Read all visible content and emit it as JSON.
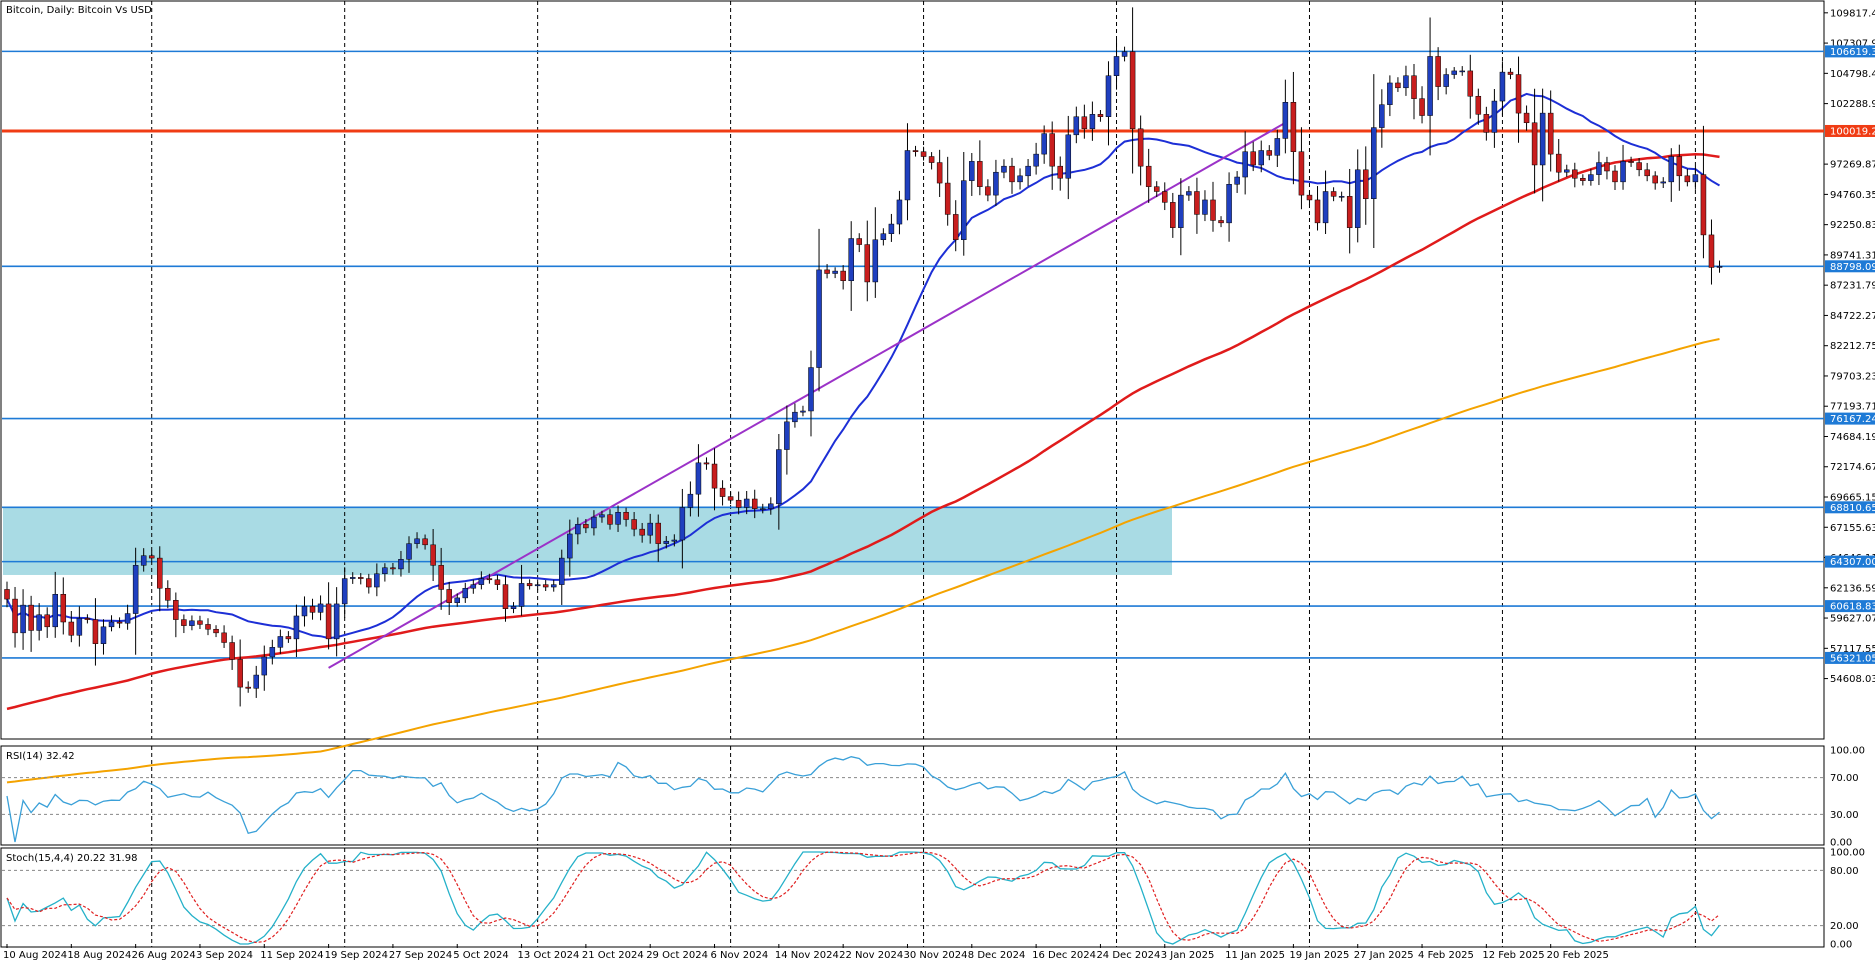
{
  "window": {
    "title": "Bitcoin, Daily:  Bitcoin Vs USD"
  },
  "colors": {
    "bull": "#1f3fbf",
    "bear": "#c81e1e",
    "wick": "#000000",
    "ma_fast": "#1d2fd6",
    "ma_mid": "#e01b1b",
    "ma_slow": "#f4a300",
    "trendline": "#9b32c8",
    "hline": "#1e7ad6",
    "resistance": "#f03c14",
    "zone": "#a9dbe4",
    "rsi": "#3aa0d8",
    "stoch_main": "#25b1c9",
    "stoch_signal": "#e02020",
    "price_tag": "#1e7ad6",
    "price_tag_red": "#f03c14"
  },
  "chart_data": {
    "type": "candlestick",
    "symbol": "Bitcoin",
    "timeframe": "Daily",
    "title": "Bitcoin, Daily:  Bitcoin Vs USD",
    "y_range": [
      52500,
      110300
    ],
    "y_ticks": [
      "109817.47",
      "107307.95",
      "104798.43",
      "102288.91",
      "97269.87",
      "94760.35",
      "92250.83",
      "89741.31",
      "87231.79",
      "84722.27",
      "82212.75",
      "79703.23",
      "77193.71",
      "74684.19",
      "72174.67",
      "69665.15",
      "67155.63",
      "64646.11",
      "62136.59",
      "59627.07",
      "57117.55",
      "54608.03"
    ],
    "x_labels": [
      "10 Aug 2024",
      "18 Aug 2024",
      "26 Aug 2024",
      "3 Sep 2024",
      "11 Sep 2024",
      "19 Sep 2024",
      "27 Sep 2024",
      "5 Oct 2024",
      "13 Oct 2024",
      "21 Oct 2024",
      "29 Oct 2024",
      "6 Nov 2024",
      "14 Nov 2024",
      "22 Nov 2024",
      "30 Nov 2024",
      "8 Dec 2024",
      "16 Dec 2024",
      "24 Dec 2024",
      "3 Jan 2025",
      "11 Jan 2025",
      "19 Jan 2025",
      "27 Jan 2025",
      "4 Feb 2025",
      "12 Feb 2025",
      "20 Feb 2025"
    ],
    "closes": [
      61200,
      58400,
      60700,
      58600,
      59900,
      58900,
      61600,
      59300,
      58200,
      59600,
      59500,
      57500,
      58900,
      59300,
      59200,
      60000,
      64000,
      64800,
      64600,
      62100,
      61100,
      59500,
      59000,
      59400,
      59100,
      58700,
      58400,
      57600,
      56200,
      53900,
      53800,
      54900,
      56400,
      57200,
      58100,
      57900,
      59800,
      60600,
      60100,
      60800,
      57900,
      60800,
      62900,
      63000,
      62900,
      62200,
      63300,
      63800,
      63700,
      64500,
      65800,
      66200,
      65700,
      64000,
      62000,
      60900,
      61300,
      62100,
      62400,
      62900,
      62800,
      62400,
      60400,
      60600,
      62500,
      62300,
      62400,
      62200,
      62400,
      64600,
      66600,
      67400,
      67100,
      68000,
      68200,
      67400,
      68400,
      67800,
      67000,
      66500,
      67500,
      65800,
      66000,
      66100,
      68800,
      69900,
      72500,
      72400,
      70400,
      69700,
      69400,
      68800,
      69500,
      68700,
      68700,
      69100,
      73600,
      75900,
      76700,
      76800,
      80400,
      88500,
      88200,
      88400,
      87600,
      91100,
      90600,
      87500,
      91000,
      91500,
      92300,
      94300,
      98400,
      98300,
      97900,
      97400,
      95700,
      93100,
      91000,
      95900,
      97500,
      95400,
      94700,
      96600,
      97100,
      95800,
      96300,
      97100,
      98100,
      99800,
      97100,
      96100,
      99700,
      101200,
      100200,
      101400,
      101200,
      104600,
      106200,
      106600,
      100200,
      97100,
      95400,
      95000,
      94100,
      92000,
      94700,
      95000,
      93100,
      94300,
      92600,
      92400,
      95600,
      96200,
      98300,
      97200,
      98400,
      98000,
      99400,
      102400,
      98300,
      94700,
      94300,
      92400,
      95000,
      94600,
      94600,
      92000,
      96800,
      94400,
      100300,
      102200,
      104000,
      103600,
      104600,
      102700,
      101300,
      106200,
      103700,
      104700,
      105000,
      105000,
      102900,
      101400,
      99900,
      102500,
      104900,
      104700,
      101500,
      100700,
      97200,
      101500,
      98100,
      96600,
      96800,
      96100,
      95900,
      96400,
      97400,
      96700,
      95800,
      97500,
      97400,
      96800,
      96300,
      95700,
      95800,
      97900,
      96300,
      95800,
      96400,
      91400,
      88700,
      88800
    ],
    "indicators": {
      "ma_fast_period_color": "blue",
      "ma_mid_color": "red",
      "ma_slow_color": "orange"
    },
    "horizontal_levels": [
      {
        "value": 106619.3,
        "label": "106619.30"
      },
      {
        "value": 100019.28,
        "label": "100019.28",
        "style": "resistance"
      },
      {
        "value": 88798.09,
        "label": "88798.09"
      },
      {
        "value": 76167.24,
        "label": "76167.24"
      },
      {
        "value": 68810.65,
        "label": "68810.65"
      },
      {
        "value": 64307.0,
        "label": "64307.00"
      },
      {
        "value": 60618.83,
        "label": "60618.83"
      },
      {
        "value": 56321.05,
        "label": "56321.05"
      }
    ],
    "zone": {
      "from": 63200,
      "to": 68810.65
    },
    "trendline": {
      "start": [
        40,
        55500
      ],
      "end": [
        159,
        100700
      ]
    },
    "rsi": {
      "label": "RSI(14) 32.42",
      "period": 14,
      "value": 32.42,
      "levels": [
        70,
        30
      ],
      "ticks": [
        "100.00",
        "70.00",
        "30.00",
        "0.00"
      ]
    },
    "stochastic": {
      "label": "Stoch(15,4,4) 20.22 31.98",
      "main": 20.22,
      "signal": 31.98,
      "levels": [
        80,
        20
      ],
      "ticks": [
        "100.00",
        "80.00",
        "20.00",
        "0.00"
      ]
    }
  }
}
